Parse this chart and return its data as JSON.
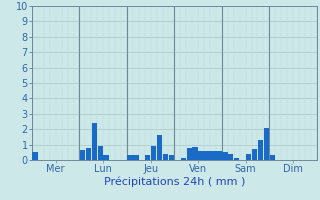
{
  "title": "",
  "xlabel": "Précipitations 24h ( mm )",
  "ylabel": "",
  "ylim": [
    0,
    10
  ],
  "yticks": [
    0,
    1,
    2,
    3,
    4,
    5,
    6,
    7,
    8,
    9,
    10
  ],
  "background_color": "#cce8e8",
  "bar_color": "#1a6ac8",
  "grid_color_h": "#aac8c8",
  "grid_color_v": "#c0d8d8",
  "day_sep_color": "#708898",
  "day_labels": [
    "Mer",
    "Lun",
    "Jeu",
    "Ven",
    "Sam",
    "Dim"
  ],
  "day_positions": [
    0,
    8,
    16,
    24,
    32,
    40
  ],
  "day_separator_positions": [
    0,
    8,
    16,
    24,
    32,
    40,
    48
  ],
  "n_bars": 48,
  "values": [
    0.55,
    0.0,
    0.0,
    0.0,
    0.0,
    0.0,
    0.0,
    0.0,
    0.65,
    0.75,
    2.4,
    0.9,
    0.3,
    0.0,
    0.0,
    0.0,
    0.3,
    0.3,
    0.0,
    0.35,
    0.9,
    1.6,
    0.4,
    0.35,
    0.0,
    0.15,
    0.8,
    0.85,
    0.6,
    0.6,
    0.6,
    0.6,
    0.5,
    0.4,
    0.15,
    0.0,
    0.4,
    0.7,
    1.3,
    2.1,
    0.3,
    0.0,
    0.0,
    0.0,
    0.0,
    0.0,
    0.0,
    0.0
  ],
  "xlabel_fontsize": 8,
  "xlabel_color": "#2244bb",
  "ytick_fontsize": 7,
  "ytick_color": "#3366aa",
  "xtick_fontsize": 7,
  "xtick_color": "#3366aa"
}
